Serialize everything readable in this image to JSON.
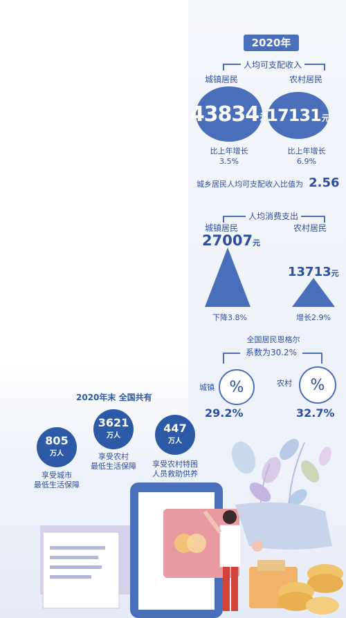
{
  "year_badge": "2020年",
  "income": {
    "title": "人均可支配收入",
    "urban_label": "城镇居民",
    "rural_label": "农村居民",
    "urban_value": "43834",
    "rural_value": "17131",
    "unit": "元",
    "urban_growth_label": "比上年增长",
    "urban_growth": "3.5%",
    "rural_growth_label": "比上年增长",
    "rural_growth": "6.9%",
    "ratio_text": "城乡居民人均可支配收入比值为",
    "ratio_value": "2.56"
  },
  "consumption": {
    "title": "人均消费支出",
    "urban_label": "城镇居民",
    "rural_label": "农村居民",
    "urban_value": "27007",
    "urban_unit": "元",
    "rural_value": "13713",
    "rural_unit": "元",
    "urban_change": "下降3.8%",
    "rural_change": "增长2.9%"
  },
  "engel": {
    "title_line1": "全国居民恩格尔",
    "title_line2": "系数为30.2%",
    "urban_label": "城镇",
    "rural_label": "农村",
    "urban_value": "29.2%",
    "rural_value": "32.7%",
    "percent_symbol": "%"
  },
  "security": {
    "title": "2020年末 全国共有",
    "items": [
      {
        "value": "805",
        "unit": "万人",
        "line1": "享受城市",
        "line2": "最低生活保障"
      },
      {
        "value": "3621",
        "unit": "万人",
        "line1": "享受农村",
        "line2": "最低生活保障"
      },
      {
        "value": "447",
        "unit": "万人",
        "line1": "享受农村特困",
        "line2": "人员救助供养"
      }
    ]
  },
  "colors": {
    "accent": "#4a6fba",
    "dark_blue": "#2c5aa6",
    "text": "#2e4f9e"
  }
}
